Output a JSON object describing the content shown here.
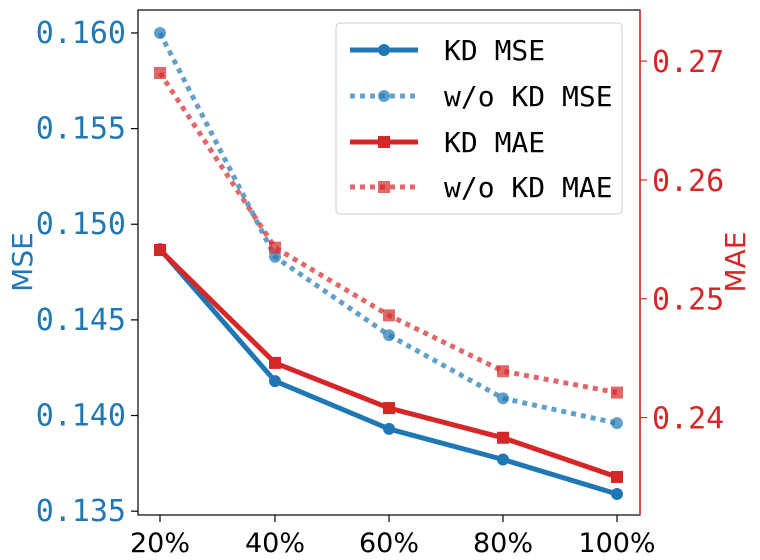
{
  "chart_data": {
    "type": "line",
    "categories": [
      "20%",
      "40%",
      "60%",
      "80%",
      "100%"
    ],
    "left_axis": {
      "label": "MSE",
      "ylim": [
        0.1348,
        0.1612
      ],
      "ticks": [
        0.135,
        0.14,
        0.145,
        0.15,
        0.155,
        0.16
      ],
      "tick_labels": [
        "0.135",
        "0.140",
        "0.145",
        "0.150",
        "0.155",
        "0.160"
      ],
      "color": "#1f77b4"
    },
    "right_axis": {
      "label": "MAE",
      "ylim": [
        0.2318,
        0.2743
      ],
      "ticks": [
        0.24,
        0.25,
        0.26,
        0.27
      ],
      "tick_labels": [
        "0.24",
        "0.25",
        "0.26",
        "0.27"
      ],
      "color": "#d62728"
    },
    "series": [
      {
        "name": "KD MSE",
        "axis": "left",
        "color": "#1f77b4",
        "style": "solid",
        "marker": "circle",
        "values": [
          0.1487,
          0.1418,
          0.1393,
          0.1377,
          0.1359
        ]
      },
      {
        "name": "w/o KD MSE",
        "axis": "left",
        "color": "#1f77b4",
        "style": "dotted",
        "marker": "circle",
        "values": [
          0.16,
          0.1483,
          0.1442,
          0.1409,
          0.1396
        ]
      },
      {
        "name": "KD MAE",
        "axis": "right",
        "color": "#d62728",
        "style": "solid",
        "marker": "square",
        "values": [
          0.2541,
          0.2446,
          0.2408,
          0.2383,
          0.235
        ]
      },
      {
        "name": "w/o KD MAE",
        "axis": "right",
        "color": "#d62728",
        "style": "dotted",
        "marker": "square",
        "values": [
          0.269,
          0.2543,
          0.2486,
          0.2439,
          0.2421
        ]
      }
    ],
    "legend": {
      "location": "top-right"
    },
    "grid": false
  }
}
